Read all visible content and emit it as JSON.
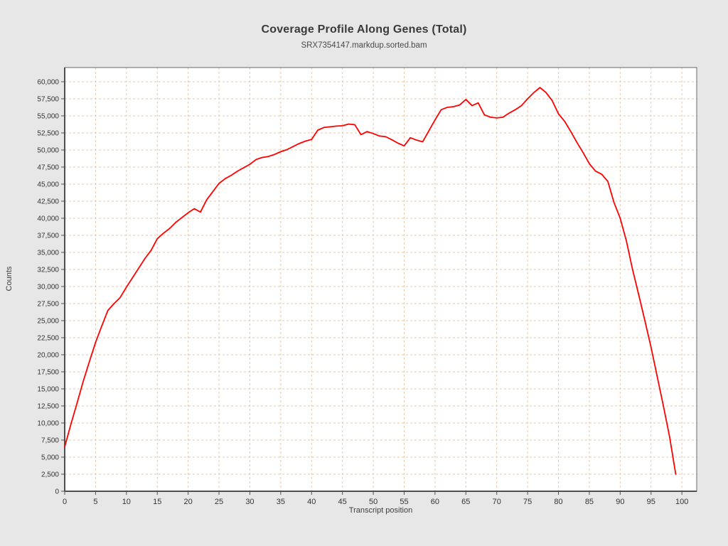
{
  "chart_data": {
    "type": "line",
    "title": "Coverage Profile Along Genes (Total)",
    "subtitle": "SRX7354147.markdup.sorted.bam",
    "xlabel": "Transcript position",
    "ylabel": "Counts",
    "x_start": 0,
    "x_step": 1,
    "values": [
      6500,
      9800,
      12900,
      16100,
      19000,
      21800,
      24200,
      26500,
      27500,
      28400,
      29900,
      31300,
      32700,
      34100,
      35300,
      37000,
      37800,
      38500,
      39400,
      40100,
      40800,
      41400,
      40900,
      42700,
      43900,
      45100,
      45800,
      46300,
      46900,
      47400,
      47900,
      48600,
      48900,
      49050,
      49350,
      49750,
      50050,
      50500,
      50950,
      51300,
      51550,
      52900,
      53300,
      53400,
      53500,
      53550,
      53800,
      53700,
      52250,
      52700,
      52400,
      52050,
      51950,
      51500,
      51000,
      50600,
      51800,
      51450,
      51200,
      52800,
      54400,
      55900,
      56250,
      56350,
      56600,
      57400,
      56500,
      56900,
      55150,
      54800,
      54700,
      54800,
      55400,
      55900,
      56500,
      57500,
      58400,
      59150,
      58400,
      57200,
      55300,
      54200,
      52700,
      51100,
      49600,
      48000,
      46900,
      46450,
      45400,
      42300,
      40000,
      36700,
      32500,
      28800,
      25000,
      21100,
      16800,
      12500,
      8000,
      2500
    ],
    "x_ticks": [
      0,
      5,
      10,
      15,
      20,
      25,
      30,
      35,
      40,
      45,
      50,
      55,
      60,
      65,
      70,
      75,
      80,
      85,
      90,
      95,
      100
    ],
    "x_tick_labels": [
      "0",
      "5",
      "10",
      "15",
      "20",
      "25",
      "30",
      "35",
      "40",
      "45",
      "50",
      "55",
      "60",
      "65",
      "70",
      "75",
      "80",
      "85",
      "90",
      "95",
      "100"
    ],
    "y_ticks": [
      0,
      2500,
      5000,
      7500,
      10000,
      12500,
      15000,
      17500,
      20000,
      22500,
      25000,
      27500,
      30000,
      32500,
      35000,
      37500,
      40000,
      42500,
      45000,
      47500,
      50000,
      52500,
      55000,
      57500,
      60000
    ],
    "y_tick_labels": [
      "0",
      "2,500",
      "5,000",
      "7,500",
      "10,000",
      "12,500",
      "15,000",
      "17,500",
      "20,000",
      "22,500",
      "25,000",
      "27,500",
      "30,000",
      "32,500",
      "35,000",
      "37,500",
      "40,000",
      "42,500",
      "45,000",
      "47,500",
      "50,000",
      "52,500",
      "55,000",
      "57,500",
      "60,000"
    ],
    "xlim": [
      0,
      102.4
    ],
    "ylim": [
      0,
      62080
    ],
    "grid": true,
    "grid_style": "dashed",
    "legend": false,
    "line_color": "#ff0000",
    "grid_color": "#f0c59e",
    "plot_bg": "#ffffff",
    "page_bg": "#e7e7e7",
    "frame_color": "#6a6a6a",
    "axis_color": "#4f4f4f",
    "tick_text_color": "#333333"
  }
}
